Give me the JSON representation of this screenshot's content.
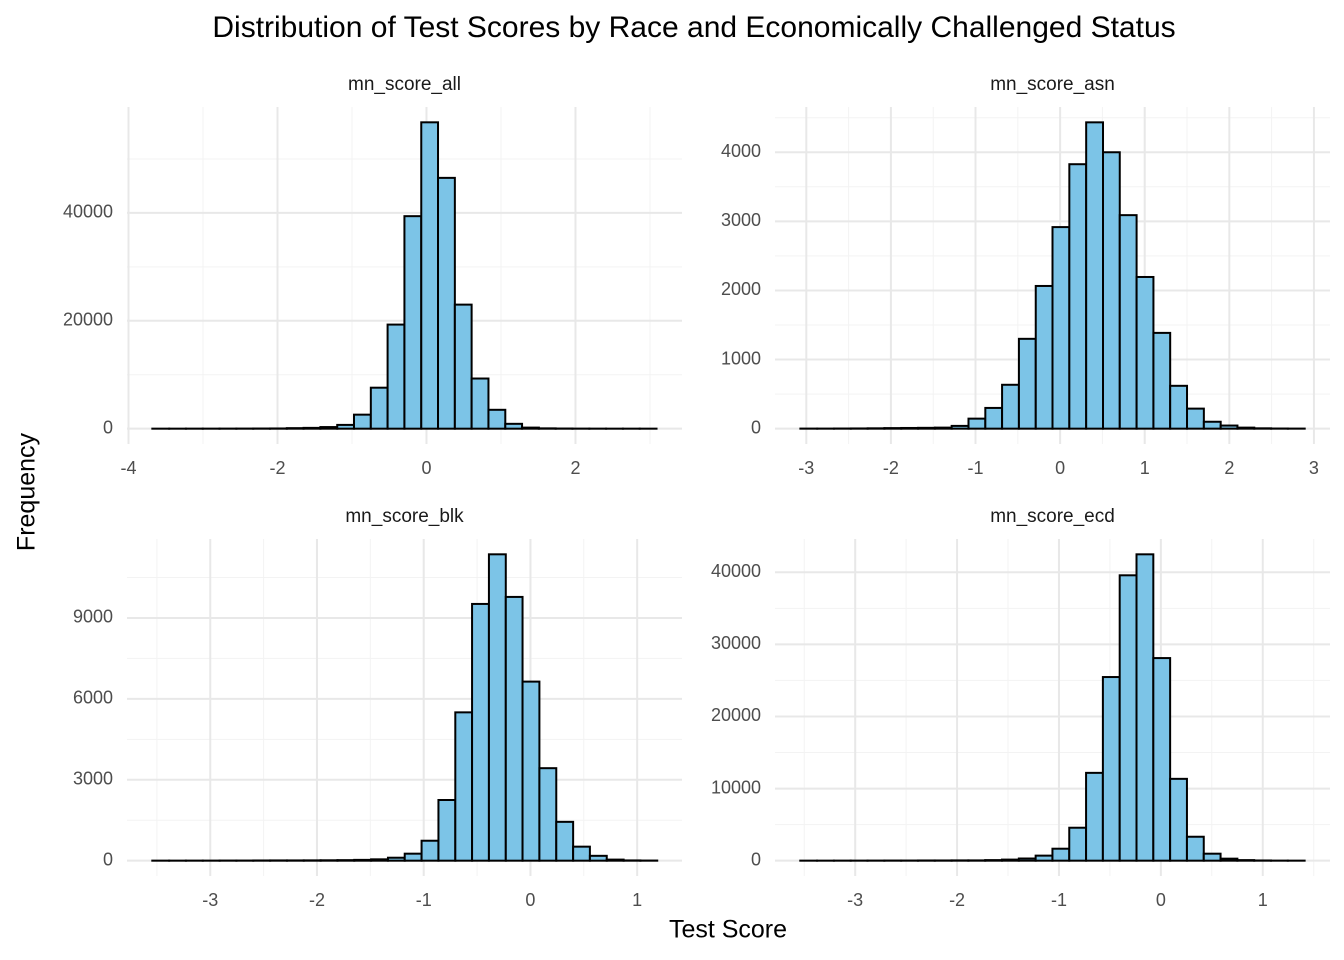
{
  "title": "Distribution of Test Scores by Race and Economically Challenged Status",
  "xlabel": "Test Score",
  "ylabel": "Frequency",
  "chart_data": [
    {
      "type": "histogram",
      "title": "mn_score_all",
      "color": "#7cc4e7",
      "grid": true,
      "bins": [
        -3.68,
        -3.454,
        -3.229,
        -3.003,
        -2.778,
        -2.552,
        -2.326,
        -2.101,
        -1.875,
        -1.65,
        -1.424,
        -1.198,
        -0.973,
        -0.747,
        -0.522,
        -0.296,
        -0.07,
        0.155,
        0.381,
        0.606,
        0.832,
        1.058,
        1.283,
        1.509,
        1.734,
        1.96,
        2.186,
        2.411,
        2.637,
        2.862,
        3.088
      ],
      "counts": [
        5,
        5,
        10,
        10,
        15,
        20,
        30,
        40,
        100,
        150,
        300,
        700,
        2600,
        7600,
        19300,
        39400,
        56800,
        46500,
        23000,
        9300,
        3500,
        900,
        200,
        60,
        30,
        15,
        10,
        5,
        5,
        5
      ],
      "xlim": [
        -4.02,
        3.43
      ],
      "ylim": [
        -2840,
        59640
      ],
      "xticks": [
        -4,
        -2,
        0,
        2
      ],
      "yticks": [
        0,
        20000,
        40000
      ]
    },
    {
      "type": "histogram",
      "title": "mn_score_asn",
      "color": "#7cc4e7",
      "grid": true,
      "bins": [
        -3.07,
        -2.871,
        -2.673,
        -2.474,
        -2.275,
        -2.077,
        -1.878,
        -1.679,
        -1.48,
        -1.282,
        -1.083,
        -0.884,
        -0.686,
        -0.487,
        -0.288,
        -0.09,
        0.109,
        0.308,
        0.507,
        0.705,
        0.904,
        1.103,
        1.301,
        1.5,
        1.699,
        1.898,
        2.096,
        2.295,
        2.494,
        2.692,
        2.891
      ],
      "counts": [
        1,
        1,
        2,
        3,
        5,
        8,
        10,
        12,
        15,
        40,
        145,
        300,
        635,
        1300,
        2065,
        2917,
        3827,
        4433,
        4000,
        3090,
        2195,
        1386,
        620,
        290,
        100,
        45,
        15,
        5,
        2,
        1
      ],
      "xlim": [
        -3.37,
        3.19
      ],
      "ylim": [
        -222,
        4655
      ],
      "xticks": [
        -3,
        -2,
        -1,
        0,
        1,
        2,
        3
      ],
      "yticks": [
        0,
        1000,
        2000,
        3000,
        4000
      ]
    },
    {
      "type": "histogram",
      "title": "mn_score_blk",
      "color": "#7cc4e7",
      "grid": true,
      "bins": [
        -3.543,
        -3.385,
        -3.228,
        -3.07,
        -2.912,
        -2.755,
        -2.597,
        -2.439,
        -2.281,
        -2.124,
        -1.966,
        -1.808,
        -1.651,
        -1.493,
        -1.335,
        -1.178,
        -1.02,
        -0.862,
        -0.704,
        -0.547,
        -0.389,
        -0.231,
        -0.074,
        0.084,
        0.242,
        0.4,
        0.557,
        0.715,
        0.873,
        1.03,
        1.188
      ],
      "counts": [
        2,
        2,
        3,
        3,
        5,
        5,
        8,
        10,
        10,
        12,
        15,
        20,
        30,
        50,
        110,
        260,
        740,
        2250,
        5500,
        9520,
        11360,
        9780,
        6640,
        3430,
        1440,
        520,
        180,
        40,
        10,
        5
      ],
      "xlim": [
        -3.78,
        1.42
      ],
      "ylim": [
        -568,
        11928
      ],
      "xticks": [
        -3,
        -2,
        -1,
        0,
        1
      ],
      "yticks": [
        0,
        3000,
        6000,
        9000
      ]
    },
    {
      "type": "histogram",
      "title": "mn_score_ecd",
      "color": "#7cc4e7",
      "grid": true,
      "bins": [
        -3.539,
        -3.374,
        -3.209,
        -3.044,
        -2.879,
        -2.714,
        -2.549,
        -2.384,
        -2.219,
        -2.054,
        -1.889,
        -1.724,
        -1.559,
        -1.394,
        -1.229,
        -1.064,
        -0.899,
        -0.734,
        -0.569,
        -0.404,
        -0.239,
        -0.074,
        0.091,
        0.256,
        0.421,
        0.586,
        0.751,
        0.916,
        1.081,
        1.246,
        1.411
      ],
      "counts": [
        5,
        5,
        10,
        10,
        15,
        20,
        20,
        30,
        30,
        40,
        40,
        80,
        150,
        300,
        700,
        1660,
        4570,
        12180,
        25470,
        39580,
        42490,
        28100,
        11350,
        3320,
        970,
        280,
        80,
        30,
        10,
        5
      ],
      "xlim": [
        -3.787,
        1.66
      ],
      "ylim": [
        -2125,
        44615
      ],
      "xticks": [
        -3,
        -2,
        -1,
        0,
        1
      ],
      "yticks": [
        0,
        10000,
        20000,
        30000,
        40000
      ]
    }
  ]
}
